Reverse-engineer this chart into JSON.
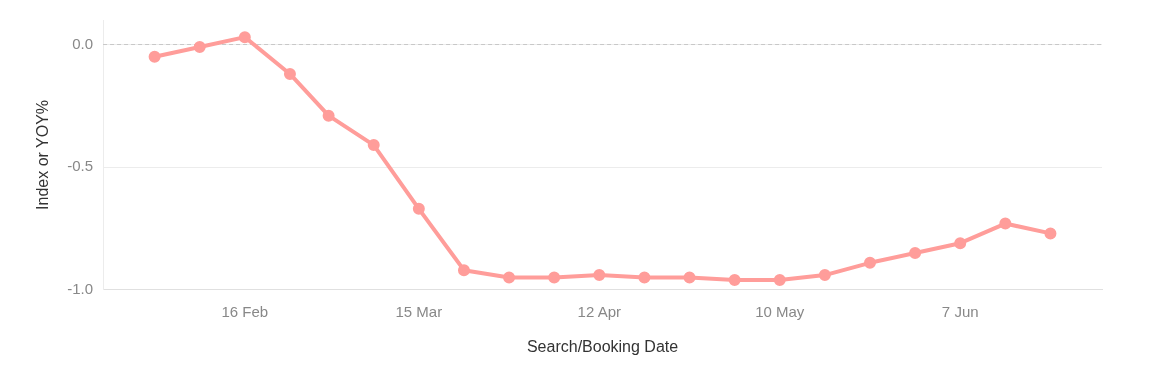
{
  "chart_data": {
    "type": "line",
    "xlabel": "Search/Booking Date",
    "ylabel": "Index or YOY%",
    "x": [
      "--02-02",
      "--02-09",
      "--02-16",
      "--02-23",
      "--03-01",
      "--03-08",
      "--03-15",
      "--03-22",
      "--03-29",
      "--04-05",
      "--04-12",
      "--04-19",
      "--04-26",
      "--05-03",
      "--05-10",
      "--05-17",
      "--05-24",
      "--05-31",
      "--06-07",
      "--06-14",
      "--06-21"
    ],
    "series": [
      {
        "color": "#ff9d9a",
        "values": [
          -0.05,
          -0.01,
          0.03,
          -0.12,
          -0.29,
          -0.41,
          -0.67,
          -0.92,
          -0.95,
          -0.95,
          -0.94,
          -0.95,
          -0.95,
          -0.96,
          -0.96,
          -0.94,
          -0.89,
          -0.85,
          -0.81,
          -0.73,
          -0.77
        ]
      }
    ],
    "xlim": [
      "--01-25",
      "--06-29"
    ],
    "xticks": [
      {
        "value": "--02-16",
        "label": "16 Feb"
      },
      {
        "value": "--03-15",
        "label": "15 Mar"
      },
      {
        "value": "--04-12",
        "label": "12 Apr"
      },
      {
        "value": "--05-10",
        "label": "10 May"
      },
      {
        "value": "--06-07",
        "label": "7 Jun"
      }
    ],
    "ylim": [
      -1.0,
      0.1
    ],
    "yticks": [
      {
        "value": 0,
        "label": "0.0"
      },
      {
        "value": -0.5,
        "label": "-0.5"
      },
      {
        "value": -1,
        "label": "-1.0"
      }
    ],
    "ref_lines": [
      {
        "axis": "y",
        "value": 0,
        "label": null,
        "color": "#c8c8c8",
        "line_style": "dashed"
      }
    ],
    "grid": "y",
    "legend": false,
    "marker": "circle",
    "line_style": "solid"
  }
}
